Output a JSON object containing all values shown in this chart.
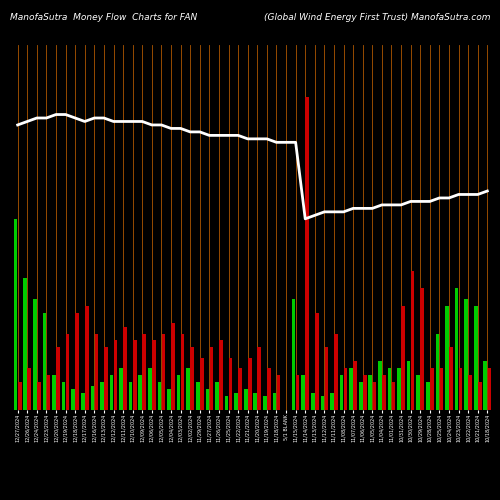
{
  "title_left": "ManofaSutra  Money Flow  Charts for FAN",
  "title_right": "(Global Wind Energy First Trust) ManofaSutra.com",
  "background_color": "#000000",
  "line_color": "#ffffff",
  "grid_color": "#cc6600",
  "dates": [
    "12/27/2024",
    "12/26/2024",
    "12/24/2024",
    "12/23/2024",
    "12/20/2024",
    "12/19/2024",
    "12/18/2024",
    "12/17/2024",
    "12/16/2024",
    "12/13/2024",
    "12/12/2024",
    "12/11/2024",
    "12/10/2024",
    "12/09/2024",
    "12/06/2024",
    "12/05/2024",
    "12/04/2024",
    "12/03/2024",
    "12/02/2024",
    "11/29/2024",
    "11/27/2024",
    "11/26/2024",
    "11/25/2024",
    "11/22/2024",
    "11/21/2024",
    "11/20/2024",
    "11/19/2024",
    "11/18/2024",
    "5/1 BLANK",
    "11/15/2024",
    "11/14/2024",
    "11/13/2024",
    "11/12/2024",
    "11/11/2024",
    "11/08/2024",
    "11/07/2024",
    "11/06/2024",
    "11/05/2024",
    "11/04/2024",
    "11/01/2024",
    "10/31/2024",
    "10/30/2024",
    "10/29/2024",
    "10/28/2024",
    "10/25/2024",
    "10/24/2024",
    "10/23/2024",
    "10/22/2024",
    "10/21/2024",
    "10/18/2024"
  ],
  "green_bars": [
    0.55,
    0.38,
    0.32,
    0.28,
    0.1,
    0.08,
    0.06,
    0.05,
    0.07,
    0.08,
    0.1,
    0.12,
    0.08,
    0.1,
    0.12,
    0.08,
    0.06,
    0.1,
    0.12,
    0.08,
    0.06,
    0.08,
    0.04,
    0.05,
    0.06,
    0.05,
    0.04,
    0.05,
    0.0,
    0.32,
    0.1,
    0.05,
    0.04,
    0.05,
    0.1,
    0.12,
    0.08,
    0.1,
    0.14,
    0.12,
    0.12,
    0.14,
    0.1,
    0.08,
    0.22,
    0.3,
    0.35,
    0.32,
    0.3,
    0.14
  ],
  "red_bars": [
    0.08,
    0.12,
    0.08,
    0.1,
    0.18,
    0.22,
    0.28,
    0.3,
    0.22,
    0.18,
    0.2,
    0.24,
    0.2,
    0.22,
    0.2,
    0.22,
    0.25,
    0.22,
    0.18,
    0.15,
    0.18,
    0.2,
    0.15,
    0.12,
    0.15,
    0.18,
    0.12,
    0.1,
    0.0,
    0.1,
    0.9,
    0.28,
    0.18,
    0.22,
    0.12,
    0.14,
    0.1,
    0.08,
    0.1,
    0.08,
    0.3,
    0.4,
    0.35,
    0.12,
    0.12,
    0.18,
    0.12,
    0.1,
    0.08,
    0.12
  ],
  "price_line": [
    0.82,
    0.83,
    0.84,
    0.84,
    0.85,
    0.85,
    0.84,
    0.83,
    0.84,
    0.84,
    0.83,
    0.83,
    0.83,
    0.83,
    0.82,
    0.82,
    0.81,
    0.81,
    0.8,
    0.8,
    0.79,
    0.79,
    0.79,
    0.79,
    0.78,
    0.78,
    0.78,
    0.77,
    0.77,
    0.77,
    0.55,
    0.56,
    0.57,
    0.57,
    0.57,
    0.58,
    0.58,
    0.58,
    0.59,
    0.59,
    0.59,
    0.6,
    0.6,
    0.6,
    0.61,
    0.61,
    0.62,
    0.62,
    0.62,
    0.63
  ]
}
